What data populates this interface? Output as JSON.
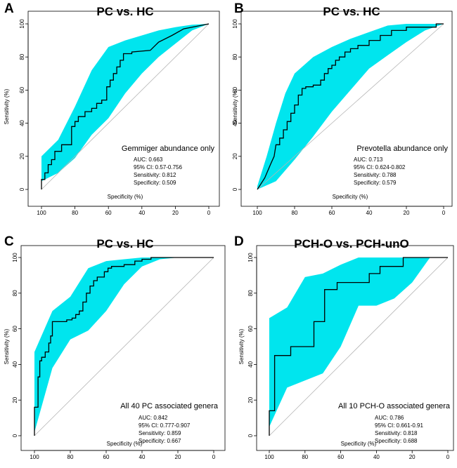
{
  "chart_data": [
    {
      "type": "line",
      "panel": "A",
      "title": "PC vs. HC",
      "xlabel": "Specificity (%)",
      "ylabel": "Sensitivity (%)",
      "xlim": [
        100,
        0
      ],
      "ylim": [
        0,
        100
      ],
      "xticks": [
        100,
        80,
        60,
        40,
        20,
        0
      ],
      "yticks": [
        0,
        20,
        40,
        60,
        80,
        100
      ],
      "legend_title": "Gemmiger abundance only",
      "stats": [
        "AUC: 0.663",
        "95% CI:  0.57-0.756",
        "Sensitivity: 0.812",
        "Specificity: 0.509"
      ],
      "ci_band": {
        "upper": [
          [
            100,
            20
          ],
          [
            90,
            30
          ],
          [
            80,
            50
          ],
          [
            70,
            72
          ],
          [
            60,
            86
          ],
          [
            50,
            90
          ],
          [
            40,
            93
          ],
          [
            30,
            96
          ],
          [
            20,
            98
          ],
          [
            10,
            99.5
          ],
          [
            0,
            100
          ]
        ],
        "lower": [
          [
            100,
            5
          ],
          [
            90,
            10
          ],
          [
            80,
            19
          ],
          [
            70,
            33
          ],
          [
            60,
            43
          ],
          [
            50,
            58
          ],
          [
            40,
            70
          ],
          [
            30,
            80
          ],
          [
            20,
            88
          ],
          [
            10,
            96
          ],
          [
            0,
            100
          ]
        ]
      },
      "series": [
        {
          "name": "ROC",
          "points": [
            [
              100,
              0
            ],
            [
              100,
              6
            ],
            [
              98,
              6
            ],
            [
              98,
              10
            ],
            [
              96,
              10
            ],
            [
              96,
              15
            ],
            [
              94,
              15
            ],
            [
              94,
              18
            ],
            [
              92,
              18
            ],
            [
              92,
              23
            ],
            [
              88,
              23
            ],
            [
              88,
              27
            ],
            [
              82,
              27
            ],
            [
              82,
              38
            ],
            [
              80,
              38
            ],
            [
              80,
              41
            ],
            [
              78,
              41
            ],
            [
              78,
              44
            ],
            [
              74,
              44
            ],
            [
              74,
              47
            ],
            [
              70,
              47
            ],
            [
              70,
              49
            ],
            [
              67,
              49
            ],
            [
              67,
              52
            ],
            [
              64,
              52
            ],
            [
              64,
              54
            ],
            [
              61,
              54
            ],
            [
              61,
              62
            ],
            [
              59,
              62
            ],
            [
              59,
              66
            ],
            [
              57,
              66
            ],
            [
              57,
              70
            ],
            [
              55,
              70
            ],
            [
              55,
              74
            ],
            [
              53,
              74
            ],
            [
              53,
              78
            ],
            [
              51,
              78
            ],
            [
              51,
              82
            ],
            [
              46,
              82
            ],
            [
              46,
              83
            ],
            [
              35,
              84
            ],
            [
              30,
              89
            ],
            [
              22,
              93
            ],
            [
              15,
              97
            ],
            [
              10,
              98
            ],
            [
              0,
              100
            ]
          ]
        }
      ]
    },
    {
      "type": "line",
      "panel": "B",
      "title": "PC vs. HC",
      "xlabel": "Specificity (%)",
      "ylabel": "Sensitivity (%)",
      "xlim": [
        100,
        0
      ],
      "ylim": [
        0,
        100
      ],
      "xticks": [
        100,
        80,
        60,
        40,
        20,
        0
      ],
      "yticks": [
        0,
        20,
        40,
        60,
        80,
        100
      ],
      "legend_title": "Prevotella abundance only",
      "stats": [
        "AUC: 0.713",
        "95% CI:  0.624-0.802",
        "Sensitivity: 0.788",
        "Specificity: 0.579"
      ],
      "ci_band": {
        "upper": [
          [
            100,
            2
          ],
          [
            95,
            20
          ],
          [
            90,
            40
          ],
          [
            85,
            58
          ],
          [
            80,
            70
          ],
          [
            70,
            80
          ],
          [
            60,
            86
          ],
          [
            50,
            91
          ],
          [
            40,
            95
          ],
          [
            30,
            99
          ],
          [
            20,
            100
          ],
          [
            0,
            100
          ]
        ],
        "lower": [
          [
            100,
            0
          ],
          [
            90,
            5
          ],
          [
            80,
            18
          ],
          [
            70,
            32
          ],
          [
            60,
            47
          ],
          [
            50,
            60
          ],
          [
            40,
            73
          ],
          [
            30,
            81
          ],
          [
            20,
            89
          ],
          [
            10,
            96
          ],
          [
            0,
            100
          ]
        ]
      },
      "series": [
        {
          "name": "ROC",
          "points": [
            [
              100,
              0
            ],
            [
              96,
              7
            ],
            [
              93,
              15
            ],
            [
              91,
              20
            ],
            [
              90,
              27
            ],
            [
              88,
              27
            ],
            [
              88,
              31
            ],
            [
              86,
              31
            ],
            [
              86,
              36
            ],
            [
              84,
              36
            ],
            [
              84,
              41
            ],
            [
              82,
              41
            ],
            [
              82,
              46
            ],
            [
              80,
              46
            ],
            [
              80,
              51
            ],
            [
              78,
              51
            ],
            [
              78,
              57
            ],
            [
              76,
              57
            ],
            [
              76,
              61
            ],
            [
              74,
              61
            ],
            [
              74,
              62
            ],
            [
              70,
              62
            ],
            [
              70,
              63
            ],
            [
              66,
              63
            ],
            [
              66,
              66
            ],
            [
              64,
              66
            ],
            [
              64,
              70
            ],
            [
              62,
              70
            ],
            [
              62,
              73
            ],
            [
              60,
              73
            ],
            [
              60,
              75
            ],
            [
              58,
              75
            ],
            [
              58,
              78
            ],
            [
              56,
              78
            ],
            [
              56,
              80
            ],
            [
              53,
              80
            ],
            [
              53,
              83
            ],
            [
              50,
              83
            ],
            [
              50,
              85
            ],
            [
              46,
              85
            ],
            [
              46,
              87
            ],
            [
              40,
              87
            ],
            [
              40,
              90
            ],
            [
              34,
              90
            ],
            [
              34,
              93
            ],
            [
              28,
              93
            ],
            [
              28,
              96
            ],
            [
              20,
              96
            ],
            [
              20,
              98
            ],
            [
              4,
              98
            ],
            [
              4,
              100
            ],
            [
              0,
              100
            ]
          ]
        }
      ]
    },
    {
      "type": "line",
      "panel": "C",
      "title": "PC vs. HC",
      "xlabel": "Specificity (%)",
      "ylabel": "Sensitivity (%)",
      "xlim": [
        100,
        0
      ],
      "ylim": [
        0,
        100
      ],
      "xticks": [
        100,
        80,
        60,
        40,
        20,
        0
      ],
      "yticks": [
        0,
        20,
        40,
        60,
        80,
        100
      ],
      "legend_title": "All 40 PC associated genera",
      "stats": [
        "AUC: 0.842",
        "95% CI:  0.777-0.907",
        "Sensitivity: 0.859",
        "Specificity: 0.667"
      ],
      "ci_band": {
        "upper": [
          [
            100,
            47
          ],
          [
            90,
            70
          ],
          [
            80,
            78
          ],
          [
            70,
            94
          ],
          [
            60,
            98
          ],
          [
            50,
            99
          ],
          [
            40,
            100
          ],
          [
            0,
            100
          ]
        ],
        "lower": [
          [
            100,
            2
          ],
          [
            90,
            38
          ],
          [
            80,
            54
          ],
          [
            70,
            59
          ],
          [
            60,
            70
          ],
          [
            50,
            85
          ],
          [
            40,
            95
          ],
          [
            30,
            99
          ],
          [
            20,
            100
          ],
          [
            0,
            100
          ]
        ]
      },
      "series": [
        {
          "name": "ROC",
          "points": [
            [
              100,
              0
            ],
            [
              100,
              16
            ],
            [
              98,
              16
            ],
            [
              98,
              33
            ],
            [
              97,
              33
            ],
            [
              97,
              42
            ],
            [
              96,
              42
            ],
            [
              96,
              44
            ],
            [
              94,
              44
            ],
            [
              94,
              47
            ],
            [
              92,
              47
            ],
            [
              92,
              52
            ],
            [
              91,
              52
            ],
            [
              91,
              56
            ],
            [
              90,
              56
            ],
            [
              90,
              64
            ],
            [
              82,
              64
            ],
            [
              82,
              65
            ],
            [
              79,
              65
            ],
            [
              79,
              66
            ],
            [
              77,
              66
            ],
            [
              77,
              68
            ],
            [
              75,
              68
            ],
            [
              75,
              70
            ],
            [
              73,
              70
            ],
            [
              73,
              75
            ],
            [
              71,
              75
            ],
            [
              71,
              80
            ],
            [
              69,
              80
            ],
            [
              69,
              84
            ],
            [
              67,
              84
            ],
            [
              67,
              87
            ],
            [
              65,
              87
            ],
            [
              65,
              89
            ],
            [
              61,
              89
            ],
            [
              61,
              92
            ],
            [
              59,
              92
            ],
            [
              59,
              94
            ],
            [
              57,
              94
            ],
            [
              57,
              95
            ],
            [
              50,
              95
            ],
            [
              50,
              96
            ],
            [
              44,
              96
            ],
            [
              44,
              98
            ],
            [
              40,
              98
            ],
            [
              40,
              99
            ],
            [
              35,
              99
            ],
            [
              35,
              100
            ],
            [
              0,
              100
            ]
          ]
        }
      ]
    },
    {
      "type": "line",
      "panel": "D",
      "title": "PCH-O vs. PCH-unO",
      "xlabel": "Specificity (%)",
      "ylabel": "Sensitivity (%)",
      "xlim": [
        100,
        0
      ],
      "ylim": [
        0,
        100
      ],
      "xticks": [
        100,
        80,
        60,
        40,
        20,
        0
      ],
      "yticks": [
        0,
        20,
        40,
        60,
        80,
        100
      ],
      "legend_title": "All 10 PCH-O associated genera",
      "stats": [
        "AUC: 0.786",
        "95% CI:  0.661-0.91",
        "Sensitivity: 0.818",
        "Specificity: 0.688"
      ],
      "ci_band": {
        "upper": [
          [
            100,
            66
          ],
          [
            90,
            72
          ],
          [
            80,
            89
          ],
          [
            70,
            91
          ],
          [
            60,
            96
          ],
          [
            50,
            100
          ],
          [
            0,
            100
          ]
        ],
        "lower": [
          [
            100,
            5
          ],
          [
            90,
            27
          ],
          [
            80,
            31
          ],
          [
            70,
            35
          ],
          [
            60,
            50
          ],
          [
            50,
            73
          ],
          [
            40,
            73
          ],
          [
            30,
            77
          ],
          [
            20,
            86
          ],
          [
            10,
            100
          ],
          [
            0,
            100
          ]
        ]
      },
      "series": [
        {
          "name": "ROC",
          "points": [
            [
              100,
              0
            ],
            [
              100,
              14
            ],
            [
              97,
              14
            ],
            [
              97,
              45
            ],
            [
              88,
              45
            ],
            [
              88,
              50
            ],
            [
              75,
              50
            ],
            [
              75,
              64
            ],
            [
              69,
              64
            ],
            [
              69,
              82
            ],
            [
              62,
              82
            ],
            [
              62,
              86
            ],
            [
              44,
              86
            ],
            [
              44,
              91
            ],
            [
              38,
              91
            ],
            [
              38,
              95
            ],
            [
              25,
              95
            ],
            [
              25,
              100
            ],
            [
              0,
              100
            ]
          ]
        }
      ]
    }
  ]
}
